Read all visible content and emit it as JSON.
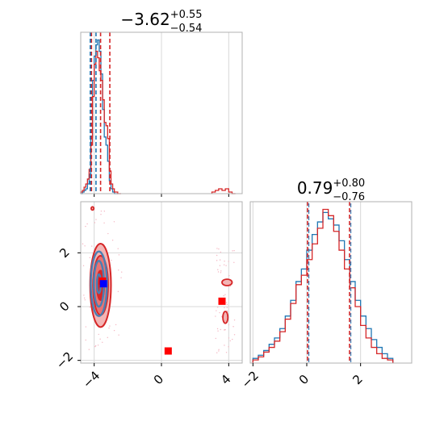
{
  "chart_data": [
    {
      "type": "histogram",
      "panel": "marginal-x",
      "title": {
        "base": "−3.62",
        "sup": "+0.55",
        "sub": "−0.54"
      },
      "xlim": [
        -4.8,
        4.8
      ],
      "grid": true,
      "quantiles": [
        -4.16,
        -3.62,
        -3.07
      ],
      "series": [
        {
          "name": "blue",
          "color": "#1f77b4",
          "bin_edges": [
            -4.8,
            -4.7,
            -4.6,
            -4.5,
            -4.4,
            -4.3,
            -4.2,
            -4.1,
            -4.0,
            -3.9,
            -3.8,
            -3.7,
            -3.6,
            -3.5,
            -3.4,
            -3.3,
            -3.2,
            -3.1,
            -3.0,
            -2.9,
            -2.8,
            -2.7,
            -2.6
          ],
          "counts": [
            0,
            1,
            2,
            3,
            6,
            12,
            35,
            70,
            85,
            92,
            95,
            88,
            74,
            52,
            35,
            30,
            20,
            8,
            3,
            1,
            0,
            0
          ]
        },
        {
          "name": "red",
          "color": "#d62728",
          "bin_edges": [
            -4.8,
            -4.7,
            -4.6,
            -4.5,
            -4.4,
            -4.3,
            -4.2,
            -4.1,
            -4.0,
            -3.9,
            -3.8,
            -3.7,
            -3.6,
            -3.5,
            -3.4,
            -3.3,
            -3.2,
            -3.1,
            -3.0,
            -2.9,
            -2.8,
            -2.7,
            -2.6,
            -2.5,
            -2.4
          ],
          "counts": [
            1,
            2,
            4,
            6,
            9,
            15,
            30,
            60,
            80,
            88,
            84,
            76,
            70,
            58,
            44,
            42,
            34,
            14,
            6,
            3,
            1,
            1,
            0,
            0
          ]
        },
        {
          "name": "red-tail",
          "color": "#d62728",
          "bin_edges": [
            3.0,
            3.2,
            3.4,
            3.6,
            3.8,
            4.0,
            4.2,
            4.4
          ],
          "counts": [
            1,
            2,
            3,
            2,
            3,
            1,
            0
          ]
        }
      ]
    },
    {
      "type": "contour",
      "panel": "joint",
      "xlim": [
        -4.8,
        4.8
      ],
      "ylim": [
        -2.1,
        3.9
      ],
      "xticks": [
        -4,
        0,
        4
      ],
      "yticks": [
        -2,
        0,
        2
      ],
      "grid": true,
      "series": [
        {
          "name": "red",
          "color": "#d62728",
          "center": [
            -3.62,
            0.79
          ],
          "radii": [
            [
              0.22,
              0.55
            ],
            [
              0.45,
              1.1
            ],
            [
              0.62,
              1.55
            ]
          ]
        },
        {
          "name": "blue",
          "color": "#4a7fb3",
          "center": [
            -3.72,
            0.85
          ],
          "radii": [
            [
              0.12,
              0.35
            ],
            [
              0.3,
              0.85
            ],
            [
              0.48,
              1.2
            ]
          ]
        }
      ],
      "extra_contours": [
        {
          "color": "#d62728",
          "center": [
            3.9,
            0.9
          ],
          "radii": [
            0.3,
            0.12
          ]
        },
        {
          "color": "#d62728",
          "center": [
            3.8,
            -0.4
          ],
          "radii": [
            0.15,
            0.22
          ]
        },
        {
          "color": "#d62728",
          "center": [
            -4.1,
            3.65
          ],
          "radii": [
            0.08,
            0.06
          ]
        }
      ],
      "markers": [
        {
          "color": "#ff0000",
          "x": -3.5,
          "y": 0.95
        },
        {
          "color": "#ff0000",
          "x": 3.6,
          "y": 0.2
        },
        {
          "color": "#ff0000",
          "x": 0.4,
          "y": -1.65
        },
        {
          "color": "#0000ff",
          "x": -3.45,
          "y": 0.85
        }
      ]
    },
    {
      "type": "histogram",
      "panel": "marginal-y",
      "title": {
        "base": "0.79",
        "sup": "+0.80",
        "sub": "−0.76"
      },
      "xlim": [
        -2.1,
        3.9
      ],
      "xticks": [
        -2,
        0,
        2
      ],
      "grid": true,
      "quantiles": [
        0.03,
        0.79,
        1.59
      ],
      "series": [
        {
          "name": "blue",
          "color": "#1f77b4",
          "bin_edges": [
            -2.0,
            -1.8,
            -1.6,
            -1.4,
            -1.2,
            -1.0,
            -0.8,
            -0.6,
            -0.4,
            -0.2,
            0.0,
            0.2,
            0.4,
            0.6,
            0.8,
            1.0,
            1.2,
            1.4,
            1.6,
            1.8,
            2.0,
            2.2,
            2.4,
            2.6,
            2.8,
            3.0,
            3.2
          ],
          "counts": [
            3,
            5,
            8,
            12,
            16,
            22,
            30,
            40,
            52,
            60,
            72,
            82,
            90,
            96,
            92,
            88,
            78,
            66,
            52,
            40,
            30,
            22,
            15,
            10,
            6,
            3
          ]
        },
        {
          "name": "red",
          "color": "#d62728",
          "bin_edges": [
            -2.0,
            -1.8,
            -1.6,
            -1.4,
            -1.2,
            -1.0,
            -0.8,
            -0.6,
            -0.4,
            -0.2,
            0.0,
            0.2,
            0.4,
            0.6,
            0.8,
            1.0,
            1.2,
            1.4,
            1.6,
            1.8,
            2.0,
            2.2,
            2.4,
            2.6,
            2.8,
            3.0,
            3.2
          ],
          "counts": [
            2,
            4,
            7,
            10,
            14,
            20,
            28,
            38,
            50,
            56,
            66,
            76,
            86,
            98,
            94,
            84,
            72,
            60,
            48,
            36,
            24,
            16,
            10,
            6,
            3,
            2
          ]
        }
      ]
    }
  ]
}
